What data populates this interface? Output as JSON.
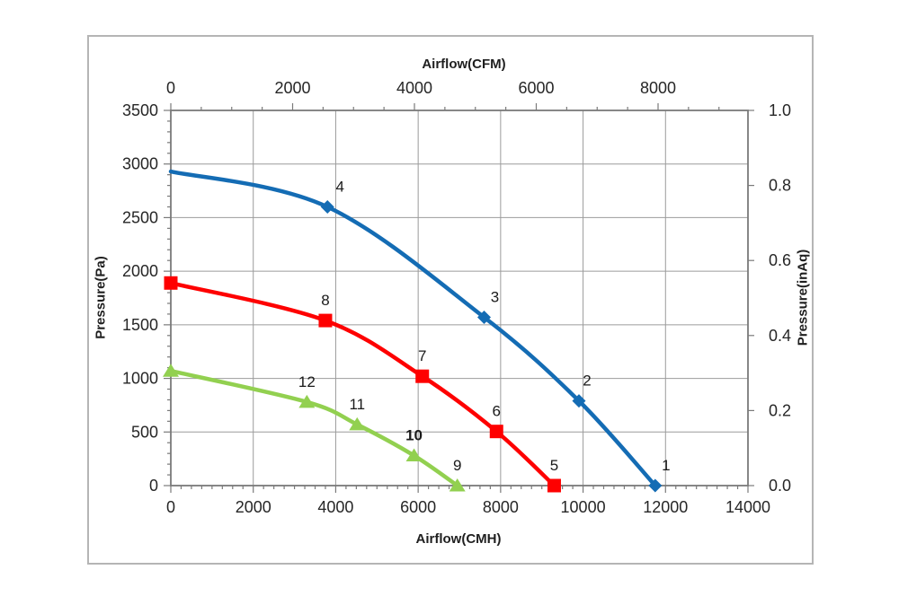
{
  "chart_data": {
    "type": "line",
    "axes": {
      "top": {
        "label": "Airflow(CFM)",
        "min": 0,
        "max_at_right_edge": 9476,
        "major_interval": 2000,
        "minor_interval": 500,
        "tick_values": [
          0,
          2000,
          4000,
          6000,
          8000
        ],
        "tick_labels": [
          "0",
          "2000",
          "4000",
          "6000",
          "8000"
        ]
      },
      "bottom": {
        "label": "Airflow(CMH)",
        "min": 0,
        "max": 14000,
        "major_interval": 2000,
        "minor_interval": 250,
        "tick_values": [
          0,
          2000,
          4000,
          6000,
          8000,
          10000,
          12000,
          14000
        ],
        "tick_labels": [
          "0",
          "2000",
          "4000",
          "6000",
          "8000",
          "10000",
          "12000",
          "14000"
        ]
      },
      "left": {
        "label": "Pressure(Pa)",
        "min": 0,
        "max": 3500,
        "major_interval": 500,
        "minor_interval": 100,
        "tick_values": [
          0,
          500,
          1000,
          1500,
          2000,
          2500,
          3000,
          3500
        ],
        "tick_labels": [
          "0",
          "500",
          "1000",
          "1500",
          "2000",
          "2500",
          "3000",
          "3500"
        ]
      },
      "right": {
        "label": "Pressure(inAq)",
        "min": 0,
        "max": 1.0,
        "major_interval": 0.2,
        "tick_values": [
          0,
          0.2,
          0.4,
          0.6,
          0.8,
          1.0
        ],
        "tick_labels": [
          "0.0",
          "0.2",
          "0.4",
          "0.6",
          "0.8",
          "1.0"
        ]
      }
    },
    "grid": {
      "vertical_every_cmh": 2000,
      "horizontal_every_pa": 500,
      "on": true
    },
    "series": [
      {
        "name": "fan-curve-high",
        "color": "#146cb4",
        "marker": "diamond",
        "points": [
          {
            "cmh": 0,
            "pa": 2930,
            "marker": false
          },
          {
            "cmh": 3800,
            "pa": 2600,
            "label": "4",
            "label_dx": 14
          },
          {
            "cmh": 7600,
            "pa": 1570,
            "label": "3",
            "label_dx": 12
          },
          {
            "cmh": 9900,
            "pa": 790,
            "label": "2",
            "label_dx": 9
          },
          {
            "cmh": 11750,
            "pa": 0,
            "label": "1",
            "label_dx": 12
          }
        ]
      },
      {
        "name": "fan-curve-mid",
        "color": "#fe0000",
        "marker": "square",
        "points": [
          {
            "cmh": 0,
            "pa": 1890
          },
          {
            "cmh": 3750,
            "pa": 1540,
            "label": "8"
          },
          {
            "cmh": 6100,
            "pa": 1020,
            "label": "7"
          },
          {
            "cmh": 7900,
            "pa": 505,
            "label": "6"
          },
          {
            "cmh": 9300,
            "pa": 0,
            "label": "5"
          }
        ]
      },
      {
        "name": "fan-curve-low",
        "color": "#92d050",
        "marker": "triangle",
        "points": [
          {
            "cmh": 0,
            "pa": 1070
          },
          {
            "cmh": 3300,
            "pa": 780,
            "label": "12"
          },
          {
            "cmh": 4520,
            "pa": 570,
            "label": "11"
          },
          {
            "cmh": 5900,
            "pa": 280,
            "label": "10",
            "label_bold": true
          },
          {
            "cmh": 6950,
            "pa": 0,
            "label": "9"
          }
        ]
      }
    ],
    "styles": {
      "axis_color": "#7a7a7a",
      "gridline_color": "#9b9b9b",
      "tick_label_color": "#262626",
      "point_label_color": "#1a1a1a",
      "frame_color": "#b5b5b5",
      "background": "#ffffff"
    }
  }
}
